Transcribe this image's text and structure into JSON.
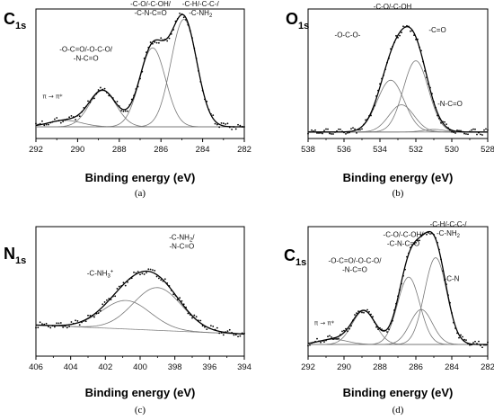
{
  "chart_data": [
    {
      "id": "a",
      "type": "line",
      "panel_label": "(a)",
      "element": "C",
      "element_sub": "1s",
      "xlabel": "Binding energy (eV)",
      "x_reversed": true,
      "xlim": [
        282,
        292
      ],
      "xticks": [
        292,
        290,
        288,
        286,
        284,
        282
      ],
      "ylim": [
        0,
        1
      ],
      "background": 0.09,
      "components": [
        {
          "center": 284.9,
          "height": 0.83,
          "sigma": 0.62
        },
        {
          "center": 286.4,
          "height": 0.61,
          "sigma": 0.62
        },
        {
          "center": 288.8,
          "height": 0.28,
          "sigma": 0.65
        },
        {
          "center": 290.6,
          "height": 0.05,
          "sigma": 0.8
        }
      ],
      "labels": [
        {
          "lines": [
            "-C-H/-C-C-/",
            "-C-NH2"
          ],
          "x": 284.1,
          "y": 1.02
        },
        {
          "lines": [
            "-C-O/-C-OH/",
            "-C-N-C=O"
          ],
          "x": 286.5,
          "y": 1.02
        },
        {
          "lines": [
            "-O-C=O/-O-C-O/",
            "-N-C=O"
          ],
          "x": 289.6,
          "y": 0.67
        },
        {
          "lines": [
            "π → π*"
          ],
          "x": 291.2,
          "y": 0.31
        }
      ]
    },
    {
      "id": "b",
      "type": "line",
      "panel_label": "(b)",
      "element": "O",
      "element_sub": "1s",
      "xlabel": "Binding energy (eV)",
      "x_reversed": true,
      "xlim": [
        528,
        538
      ],
      "xticks": [
        538,
        536,
        534,
        532,
        530,
        528
      ],
      "ylim": [
        0,
        1
      ],
      "background": 0.05,
      "components": [
        {
          "center": 532.0,
          "height": 0.55,
          "sigma": 0.7
        },
        {
          "center": 533.4,
          "height": 0.4,
          "sigma": 0.75
        },
        {
          "center": 532.8,
          "height": 0.21,
          "sigma": 0.7
        },
        {
          "center": 531.0,
          "height": 0.02,
          "sigma": 0.6
        }
      ],
      "labels": [
        {
          "lines": [
            "-C-O/-C-OH"
          ],
          "x": 533.3,
          "y": 1.0
        },
        {
          "lines": [
            "-O-C-O-"
          ],
          "x": 535.8,
          "y": 0.78
        },
        {
          "lines": [
            "-C=O"
          ],
          "x": 530.8,
          "y": 0.82
        },
        {
          "lines": [
            "-N-C=O"
          ],
          "x": 530.1,
          "y": 0.25
        }
      ]
    },
    {
      "id": "c",
      "type": "line",
      "panel_label": "(c)",
      "element": "N",
      "element_sub": "1s",
      "xlabel": "Binding energy (eV)",
      "x_reversed": true,
      "xlim": [
        394,
        406
      ],
      "xticks": [
        406,
        404,
        402,
        400,
        398,
        396,
        394
      ],
      "ylim": [
        0,
        1
      ],
      "background_start": 0.17,
      "background_end": 0.24,
      "components": [
        {
          "center": 399.0,
          "height": 0.33,
          "sigma": 1.4
        },
        {
          "center": 400.8,
          "height": 0.22,
          "sigma": 1.4
        }
      ],
      "labels": [
        {
          "lines": [
            "-C-NH2/",
            "-N-C=O"
          ],
          "x": 397.6,
          "y": 0.9
        },
        {
          "lines": [
            "-C-NH3+"
          ],
          "x": 402.3,
          "y": 0.62
        }
      ]
    },
    {
      "id": "d",
      "type": "line",
      "panel_label": "(d)",
      "element": "C",
      "element_sub": "1s",
      "xlabel": "Binding energy (eV)",
      "x_reversed": true,
      "xlim": [
        282,
        292
      ],
      "xticks": [
        292,
        290,
        288,
        286,
        284,
        282
      ],
      "ylim": [
        0,
        1
      ],
      "background": 0.09,
      "components": [
        {
          "center": 284.9,
          "height": 0.67,
          "sigma": 0.62
        },
        {
          "center": 286.4,
          "height": 0.52,
          "sigma": 0.62
        },
        {
          "center": 285.7,
          "height": 0.27,
          "sigma": 0.62
        },
        {
          "center": 288.9,
          "height": 0.26,
          "sigma": 0.65
        },
        {
          "center": 290.6,
          "height": 0.04,
          "sigma": 0.8
        }
      ],
      "labels": [
        {
          "lines": [
            "-C-H/-C-C-/",
            "-C-NH2"
          ],
          "x": 284.2,
          "y": 1.0
        },
        {
          "lines": [
            "-C-O/-C-OH/",
            "-C-N-C=O"
          ],
          "x": 286.7,
          "y": 0.92
        },
        {
          "lines": [
            "-O-C=O/-O-C-O/",
            "-N-C=O"
          ],
          "x": 289.4,
          "y": 0.72
        },
        {
          "lines": [
            "-C-N"
          ],
          "x": 284.0,
          "y": 0.58
        },
        {
          "lines": [
            "π → π*"
          ],
          "x": 291.1,
          "y": 0.24
        }
      ]
    }
  ]
}
